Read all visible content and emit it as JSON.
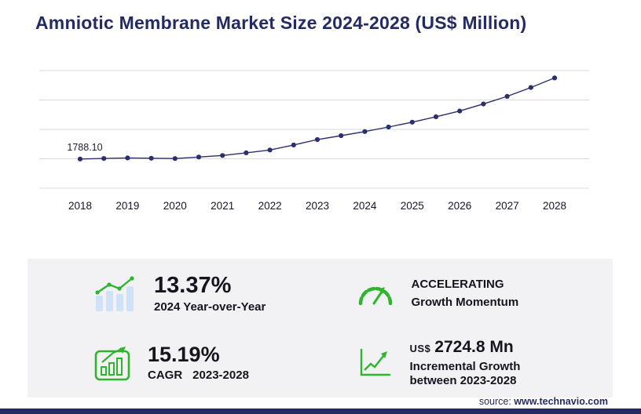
{
  "title": "Amniotic Membrane Market Size 2024-2028 (US$ Million)",
  "chart_data": {
    "type": "line",
    "title": "Amniotic Membrane Market Size 2024-2028 (US$ Million)",
    "unit": "US$ Million",
    "x": [
      2018,
      2018.5,
      2019,
      2019.5,
      2020,
      2020.5,
      2021,
      2021.5,
      2022,
      2022.5,
      2023,
      2023.5,
      2024,
      2024.5,
      2025,
      2025.5,
      2026,
      2026.5,
      2027,
      2027.5,
      2028
    ],
    "values": [
      1788.1,
      1813,
      1838,
      1825,
      1812,
      1877,
      1945,
      2064,
      2190,
      2409,
      2650,
      2822,
      3004,
      3205,
      3420,
      3657,
      3910,
      4222,
      4560,
      4951,
      5374.8
    ],
    "x_tick_labels": [
      "2018",
      "2019",
      "2020",
      "2021",
      "2022",
      "2023",
      "2024",
      "2025",
      "2026",
      "2027",
      "2028"
    ],
    "first_point_label": "1788.10",
    "ylim": [
      500,
      5700
    ],
    "grid": true,
    "legend": "none",
    "line_color": "#2b2f6e"
  },
  "stats": {
    "yoy": {
      "value": "13.37%",
      "label": "2024 Year-over-Year"
    },
    "momentum": {
      "line1": "ACCELERATING",
      "line2": "Growth Momentum"
    },
    "cagr": {
      "value": "15.19%",
      "label": "CAGR",
      "range": "2023-2028"
    },
    "incremental": {
      "currency": "US$",
      "value": "2724.8 Mn",
      "label_line1": "Incremental Growth",
      "label_line2": "between 2023-2028"
    }
  },
  "source": {
    "prefix": "source:",
    "url": "www.technavio.com"
  },
  "colors": {
    "navy": "#242b64",
    "accent_green": "#2eb52e",
    "panel_gray": "#f2f2f4",
    "grid_gray": "#d9d9dc",
    "bar_blue": "#cfe2f8"
  }
}
